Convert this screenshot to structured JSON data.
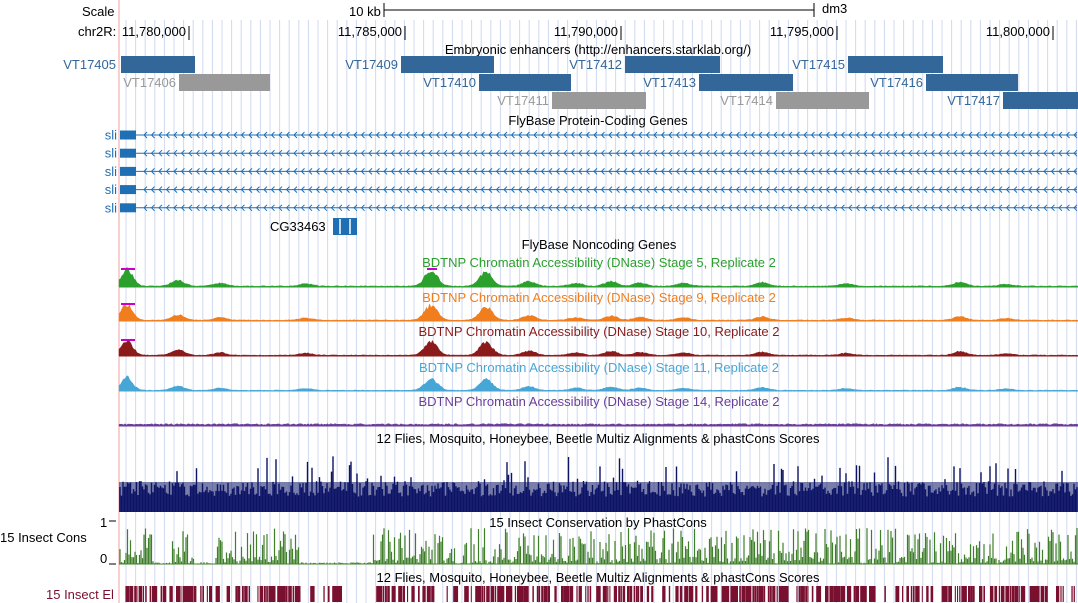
{
  "ruler": {
    "scale_label": "Scale",
    "scale_bar_label": "10 kb",
    "assembly": "dm3",
    "chrom_label": "chr2R:",
    "positions": [
      "11,780,000",
      "11,785,000",
      "11,790,000",
      "11,795,000",
      "11,800,000"
    ]
  },
  "tracks": {
    "enhancers": {
      "title": "Embryonic enhancers (http://enhancers.starklab.org/)",
      "items": [
        {
          "name": "VT17405",
          "color": "#336699"
        },
        {
          "name": "VT17406",
          "color": "#999999"
        },
        {
          "name": "VT17409",
          "color": "#336699"
        },
        {
          "name": "VT17410",
          "color": "#336699"
        },
        {
          "name": "VT17411",
          "color": "#999999"
        },
        {
          "name": "VT17412",
          "color": "#336699"
        },
        {
          "name": "VT17413",
          "color": "#336699"
        },
        {
          "name": "VT17414",
          "color": "#999999"
        },
        {
          "name": "VT17415",
          "color": "#336699"
        },
        {
          "name": "VT17416",
          "color": "#336699"
        },
        {
          "name": "VT17417",
          "color": "#336699"
        }
      ]
    },
    "coding_genes": {
      "title": "FlyBase Protein-Coding Genes",
      "color": "#1f6fb5",
      "sli_label": "sli",
      "sli_count": 5,
      "gene2": "CG33463"
    },
    "noncoding": {
      "title": "FlyBase Noncoding Genes",
      "color": "#1f6fb5"
    },
    "dnase": [
      {
        "title": "BDTNP Chromatin Accessibility (DNase) Stage 5, Replicate 2",
        "color": "#2ca02c"
      },
      {
        "title": "BDTNP Chromatin Accessibility (DNase) Stage 9, Replicate 2",
        "color": "#f07e1f"
      },
      {
        "title": "BDTNP Chromatin Accessibility (DNase) Stage 10, Replicate 2",
        "color": "#8b1a1a"
      },
      {
        "title": "BDTNP Chromatin Accessibility (DNase) Stage 11, Replicate 2",
        "color": "#46a6d6"
      },
      {
        "title": "BDTNP Chromatin Accessibility (DNase) Stage 14, Replicate 2",
        "color": "#6a3d9a"
      }
    ],
    "multiz": {
      "title": "12 Flies, Mosquito, Honeybee, Beetle Multiz Alignments & phastCons Scores",
      "color": "#0d1466"
    },
    "cons": {
      "title": "15 Insect Conservation by PhastCons",
      "side_label": "15 Insect Cons",
      "y_max": "1",
      "y_min": "0",
      "color": "#3f7f2a"
    },
    "elements": {
      "title": "12 Flies, Mosquito, Honeybee, Beetle Multiz Alignments & phastCons Scores",
      "side_label": "15 Insect El",
      "color": "#7a1030"
    }
  }
}
